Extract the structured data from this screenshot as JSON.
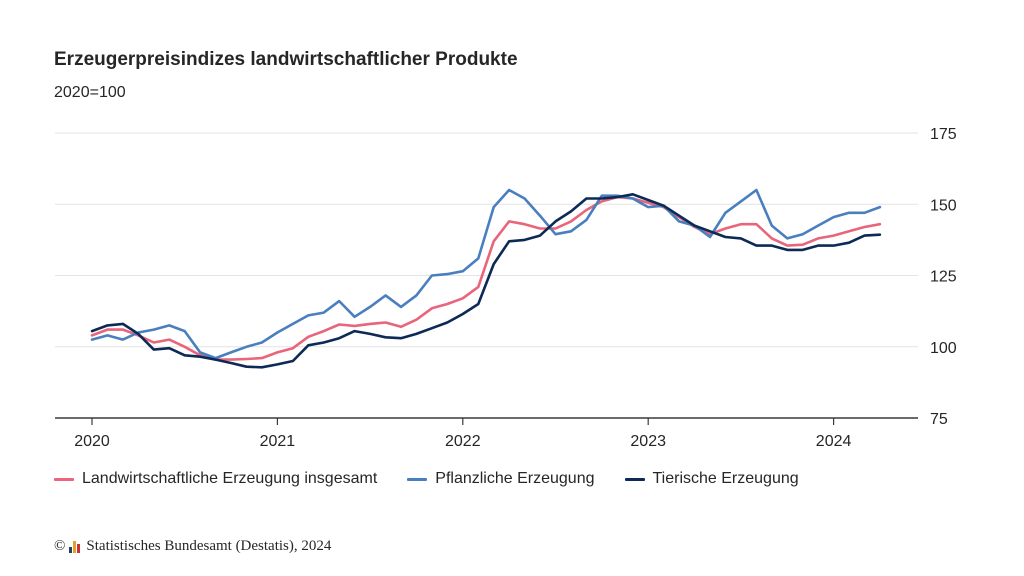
{
  "header": {
    "title": "Erzeugerpreisindizes landwirtschaftlicher Produkte",
    "subtitle": "2020=100"
  },
  "footer": {
    "copyright_symbol": "©",
    "source": "Statistisches Bundesamt (Destatis), 2024"
  },
  "chart_data": {
    "type": "line",
    "title": "Erzeugerpreisindizes landwirtschaftlicher Produkte",
    "subtitle": "2020=100",
    "xlabel": "",
    "ylabel": "",
    "x_ticks": [
      "2020",
      "2021",
      "2022",
      "2023",
      "2024"
    ],
    "y_ticks": [
      75,
      100,
      125,
      150,
      175
    ],
    "ylim": [
      75,
      175
    ],
    "x": [
      "2020-01",
      "2020-02",
      "2020-03",
      "2020-04",
      "2020-05",
      "2020-06",
      "2020-07",
      "2020-08",
      "2020-09",
      "2020-10",
      "2020-11",
      "2020-12",
      "2021-01",
      "2021-02",
      "2021-03",
      "2021-04",
      "2021-05",
      "2021-06",
      "2021-07",
      "2021-08",
      "2021-09",
      "2021-10",
      "2021-11",
      "2021-12",
      "2022-01",
      "2022-02",
      "2022-03",
      "2022-04",
      "2022-05",
      "2022-06",
      "2022-07",
      "2022-08",
      "2022-09",
      "2022-10",
      "2022-11",
      "2022-12",
      "2023-01",
      "2023-02",
      "2023-03",
      "2023-04",
      "2023-05",
      "2023-06",
      "2023-07",
      "2023-08",
      "2023-09",
      "2023-10",
      "2023-11",
      "2023-12",
      "2024-01",
      "2024-02",
      "2024-03",
      "2024-04"
    ],
    "grid": "horizontal",
    "y_axis_position": "right",
    "legend_position": "bottom",
    "series": [
      {
        "name": "Landwirtschaftliche Erzeugung insgesamt",
        "color": "#e8657b",
        "values": [
          104,
          106,
          106,
          104,
          101.5,
          102.5,
          100,
          97,
          95.5,
          95.5,
          95.7,
          96,
          98,
          99.5,
          103.5,
          105.5,
          107.8,
          107.3,
          108,
          108.5,
          107,
          109.5,
          113.5,
          115,
          117,
          121,
          137,
          144,
          143,
          141.5,
          141.5,
          144,
          148,
          151,
          152.5,
          152,
          150.5,
          149,
          145.5,
          142,
          139.5,
          141.5,
          143,
          143,
          138,
          135.5,
          135.8,
          138,
          139,
          140.5,
          142,
          143
        ]
      },
      {
        "name": "Pflanzliche Erzeugung",
        "color": "#4a7fbf",
        "values": [
          102.5,
          104,
          102.5,
          105,
          106,
          107.5,
          105.5,
          98,
          96,
          98,
          100,
          101.5,
          105,
          108,
          111,
          112,
          116,
          110.5,
          114,
          118,
          114,
          118,
          125,
          125.5,
          126.5,
          131,
          149,
          155,
          152,
          146,
          139.5,
          140.5,
          144.5,
          153,
          153,
          152,
          149,
          149.5,
          144,
          142.5,
          138.5,
          147,
          151,
          155,
          142.5,
          138,
          139.5,
          142.5,
          145.5,
          147,
          147,
          149
        ]
      },
      {
        "name": "Tierische Erzeugung",
        "color": "#0c2a55",
        "values": [
          105.5,
          107.5,
          108,
          104.5,
          99,
          99.5,
          97,
          96.5,
          95.5,
          94.3,
          93,
          92.8,
          93.8,
          95,
          100.5,
          101.5,
          103,
          105.5,
          104.5,
          103.3,
          103,
          104.5,
          106.5,
          108.5,
          111.5,
          115,
          129,
          137,
          137.5,
          139,
          144,
          147.5,
          152,
          152,
          152.5,
          153.5,
          151.5,
          149.5,
          146,
          142.5,
          140.5,
          138.5,
          138,
          135.5,
          135.5,
          134,
          134,
          135.5,
          135.5,
          136.5,
          139,
          139.3
        ]
      }
    ]
  }
}
